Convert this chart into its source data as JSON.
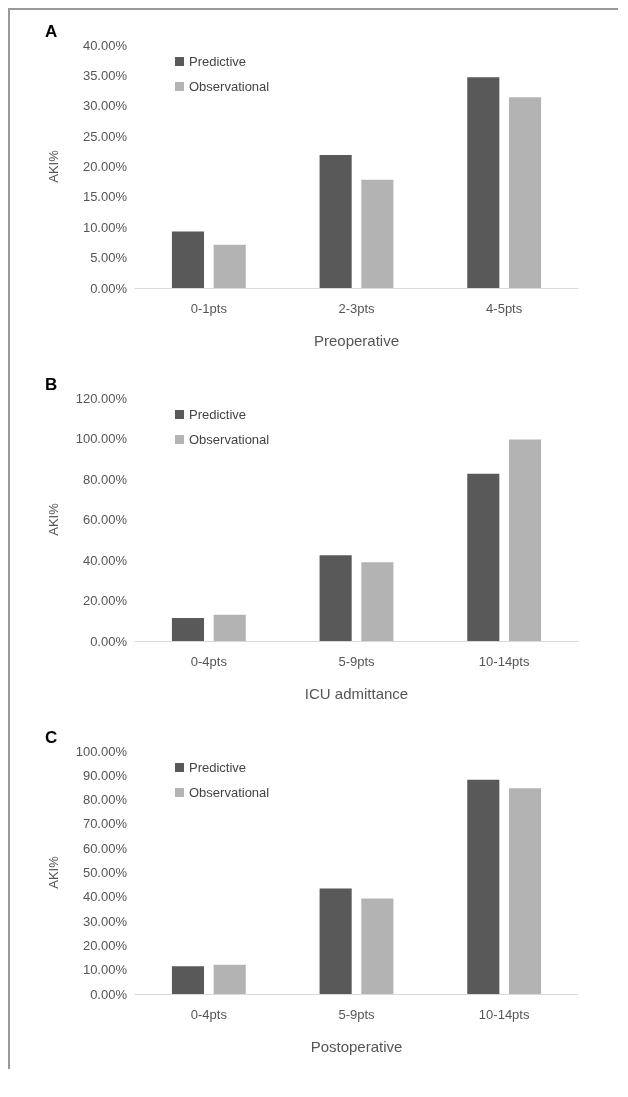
{
  "chart_data": [
    {
      "type": "bar",
      "title": "A",
      "categories": [
        "0-1pts",
        "2-3pts",
        "4-5pts"
      ],
      "xlabel": "Preoperative",
      "ylabel": "AKI%",
      "series": [
        {
          "name": "Predictive",
          "color": "#595959",
          "values": [
            9.3,
            21.9,
            34.7
          ]
        },
        {
          "name": "Observational",
          "color": "#b3b3b3",
          "values": [
            7.1,
            17.8,
            31.4
          ]
        }
      ],
      "ylim": [
        0,
        40
      ],
      "yticks": [
        {
          "value": 0,
          "label": "0.00%"
        },
        {
          "value": 5,
          "label": "5.00%"
        },
        {
          "value": 10,
          "label": "10.00%"
        },
        {
          "value": 15,
          "label": "15.00%"
        },
        {
          "value": 20,
          "label": "20.00%"
        },
        {
          "value": 25,
          "label": "25.00%"
        },
        {
          "value": 30,
          "label": "30.00%"
        },
        {
          "value": 35,
          "label": "35.00%"
        },
        {
          "value": 40,
          "label": "40.00%"
        }
      ],
      "grid": false,
      "legend": "top left"
    },
    {
      "type": "bar",
      "title": "B",
      "categories": [
        "0-4pts",
        "5-9pts",
        "10-14pts"
      ],
      "xlabel": "ICU admittance",
      "ylabel": "AKI%",
      "series": [
        {
          "name": "Predictive",
          "color": "#595959",
          "values": [
            11.4,
            42.4,
            82.6
          ]
        },
        {
          "name": "Observational",
          "color": "#b3b3b3",
          "values": [
            13.0,
            38.9,
            99.5
          ]
        }
      ],
      "ylim": [
        0,
        120
      ],
      "yticks": [
        {
          "value": 0,
          "label": "0.00%"
        },
        {
          "value": 20,
          "label": "20.00%"
        },
        {
          "value": 40,
          "label": "40.00%"
        },
        {
          "value": 60,
          "label": "60.00%"
        },
        {
          "value": 80,
          "label": "80.00%"
        },
        {
          "value": 100,
          "label": "100.00%"
        },
        {
          "value": 120,
          "label": "120.00%"
        }
      ],
      "grid": false,
      "legend": "top left"
    },
    {
      "type": "bar",
      "title": "C",
      "categories": [
        "0-4pts",
        "5-9pts",
        "10-14pts"
      ],
      "xlabel": "Postoperative",
      "ylabel": "AKI%",
      "series": [
        {
          "name": "Predictive",
          "color": "#595959",
          "values": [
            11.4,
            43.4,
            88.2
          ]
        },
        {
          "name": "Observational",
          "color": "#b3b3b3",
          "values": [
            12.0,
            39.3,
            84.7
          ]
        }
      ],
      "ylim": [
        0,
        100
      ],
      "yticks": [
        {
          "value": 0,
          "label": "0.00%"
        },
        {
          "value": 10,
          "label": "10.00%"
        },
        {
          "value": 20,
          "label": "20.00%"
        },
        {
          "value": 30,
          "label": "30.00%"
        },
        {
          "value": 40,
          "label": "40.00%"
        },
        {
          "value": 50,
          "label": "50.00%"
        },
        {
          "value": 60,
          "label": "60.00%"
        },
        {
          "value": 70,
          "label": "70.00%"
        },
        {
          "value": 80,
          "label": "80.00%"
        },
        {
          "value": 90,
          "label": "90.00%"
        },
        {
          "value": 100,
          "label": "100.00%"
        }
      ],
      "grid": false,
      "legend": "top left"
    }
  ]
}
